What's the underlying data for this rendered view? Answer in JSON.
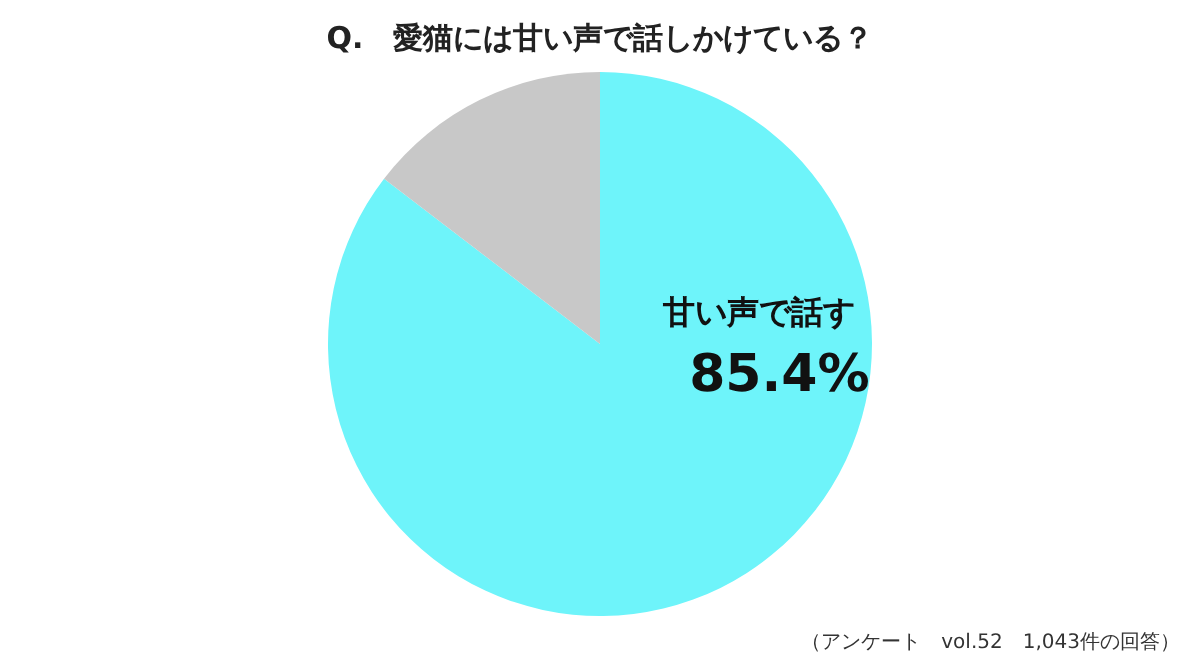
{
  "chart_data": {
    "type": "pie",
    "title": "Q.　愛猫には甘い声で話しかけている？",
    "categories": [
      "甘い声で話す",
      null
    ],
    "values": [
      85.4,
      14.6
    ],
    "colors": [
      "#6ef4fa",
      "#c8c8c8"
    ],
    "value_labels": [
      "85.4%",
      null
    ],
    "annotations": [
      "（アンケート　vol.52　1,043件の回答）"
    ]
  }
}
